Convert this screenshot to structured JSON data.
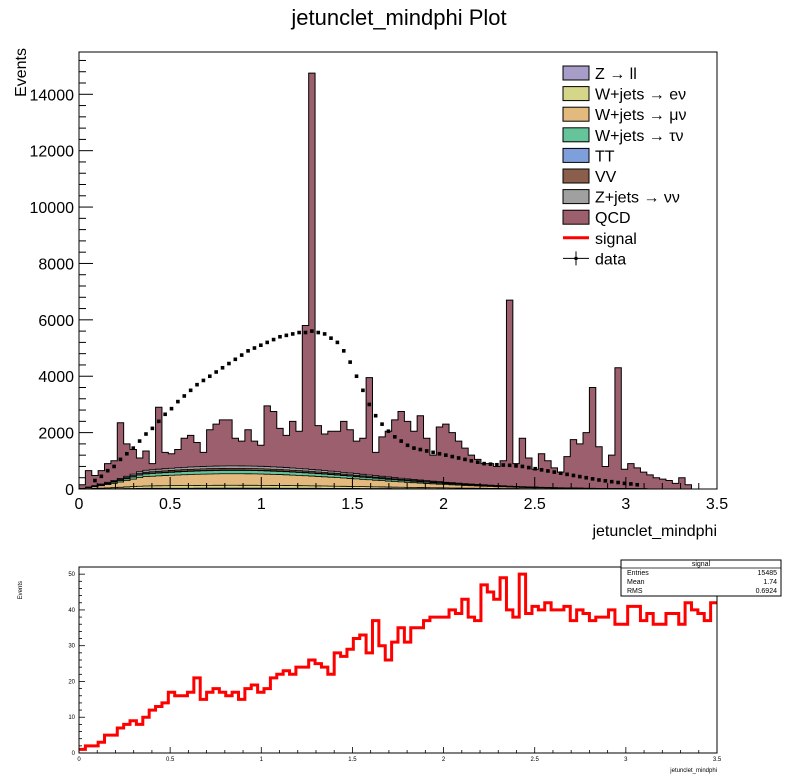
{
  "chart_data": [
    {
      "type": "area",
      "title": "jetunclet_mindphi Plot",
      "xlabel": "jetunclet_mindphi",
      "ylabel": "Events",
      "xlim": [
        0,
        3.5
      ],
      "ylim": [
        0,
        15500
      ],
      "x_ticks": [
        0,
        0.5,
        1,
        1.5,
        2,
        2.5,
        3,
        3.5
      ],
      "x_tick_labels": [
        "0",
        "0.5",
        "1",
        "1.5",
        "2",
        "2.5",
        "3",
        "3.5"
      ],
      "y_ticks": [
        0,
        2000,
        4000,
        6000,
        8000,
        10000,
        12000,
        14000
      ],
      "y_tick_labels": [
        "0",
        "2000",
        "4000",
        "6000",
        "8000",
        "10000",
        "12000",
        "14000"
      ],
      "bin_width": 0.035,
      "legend_position": "top-right",
      "colors": {
        "z_ll": "#a89cc8",
        "w_enu": "#d6d68a",
        "w_munu": "#e3b97d",
        "w_taunu": "#66c49a",
        "tt": "#7f9fdc",
        "vv": "#8b5e4c",
        "z_nunu": "#a0a0a0",
        "qcd": "#9c5f6e",
        "signal": "#ff0000",
        "data": "#000000"
      },
      "legend": [
        {
          "key": "z_ll",
          "label": "Z → ll",
          "kind": "fill"
        },
        {
          "key": "w_enu",
          "label": "W+jets → eν",
          "kind": "fill"
        },
        {
          "key": "w_munu",
          "label": "W+jets → μν",
          "kind": "fill"
        },
        {
          "key": "w_taunu",
          "label": "W+jets → τν",
          "kind": "fill"
        },
        {
          "key": "tt",
          "label": "TT",
          "kind": "fill"
        },
        {
          "key": "vv",
          "label": "VV",
          "kind": "fill"
        },
        {
          "key": "z_nunu",
          "label": "Z+jets → νν",
          "kind": "fill"
        },
        {
          "key": "qcd",
          "label": "QCD",
          "kind": "fill"
        },
        {
          "key": "signal",
          "label": "signal",
          "kind": "line"
        },
        {
          "key": "data",
          "label": "data",
          "kind": "marker"
        }
      ],
      "stack_total": [
        150,
        650,
        480,
        650,
        900,
        1000,
        2350,
        1600,
        1400,
        1100,
        1350,
        900,
        2900,
        1300,
        1250,
        1400,
        1800,
        1900,
        1650,
        1300,
        2100,
        2300,
        2450,
        2450,
        1800,
        1700,
        2100,
        1700,
        1550,
        2950,
        2750,
        2150,
        1900,
        2400,
        2050,
        5800,
        14750,
        2250,
        1950,
        2050,
        2050,
        2400,
        2100,
        1700,
        1800,
        3950,
        1300,
        1850,
        2050,
        2450,
        2750,
        2400,
        2050,
        2600,
        1800,
        1200,
        2200,
        2300,
        2000,
        1700,
        1450,
        1200,
        1050,
        900,
        900,
        800,
        1000,
        6700,
        900,
        1800,
        1100,
        700,
        1250,
        1000,
        750,
        600,
        1150,
        1750,
        1600,
        2000,
        3600,
        1500,
        800,
        1200,
        4300,
        700,
        900,
        750,
        600,
        500,
        400,
        350,
        300,
        200,
        400,
        150,
        0,
        0,
        0,
        0
      ],
      "stack_layers": [
        {
          "key": "z_ll",
          "scale": 0.02
        },
        {
          "key": "w_enu",
          "scale": 0.07
        },
        {
          "key": "w_munu",
          "scale": 0.28
        },
        {
          "key": "w_taunu",
          "scale": 0.08
        },
        {
          "key": "tt",
          "scale": 0.01
        },
        {
          "key": "vv",
          "scale": 0.04
        },
        {
          "key": "z_nunu",
          "scale": 0.06
        }
      ],
      "data_points": {
        "x": [
          0.0875,
          0.1225,
          0.1575,
          0.1925,
          0.2275,
          0.2625,
          0.2975,
          0.3325,
          0.3675,
          0.4025,
          0.4375,
          0.4725,
          0.5075,
          0.5425,
          0.5775,
          0.6125,
          0.6475,
          0.6825,
          0.7175,
          0.7525,
          0.7875,
          0.8225,
          0.8575,
          0.8925,
          0.9275,
          0.9625,
          0.9975,
          1.0325,
          1.0675,
          1.1025,
          1.1375,
          1.1725,
          1.2075,
          1.2425,
          1.2775,
          1.3125,
          1.3475,
          1.3825,
          1.4175,
          1.4525,
          1.4875,
          1.5225,
          1.5575,
          1.5925,
          1.6275,
          1.6625,
          1.6975,
          1.7325,
          1.7675,
          1.8025,
          1.8375,
          1.8725,
          1.9075,
          1.9425,
          1.9775,
          2.0125,
          2.0475,
          2.0825,
          2.1175,
          2.1525,
          2.1875,
          2.2225,
          2.2575,
          2.2925,
          2.3275,
          2.3625,
          2.3975,
          2.4325,
          2.4675,
          2.5025,
          2.5375,
          2.5725,
          2.6075,
          2.6425,
          2.6775,
          2.7125,
          2.7475,
          2.7825,
          2.8175,
          2.8525,
          2.8875,
          2.9225,
          2.9575,
          2.9925,
          3.0275,
          3.0625
        ],
        "y": [
          300,
          450,
          650,
          800,
          1050,
          1250,
          1450,
          1700,
          1950,
          2150,
          2400,
          2650,
          2850,
          3100,
          3300,
          3500,
          3700,
          3850,
          4000,
          4150,
          4300,
          4450,
          4600,
          4750,
          4900,
          5000,
          5100,
          5200,
          5300,
          5400,
          5450,
          5500,
          5550,
          5550,
          5600,
          5550,
          5500,
          5350,
          5200,
          4900,
          4500,
          4000,
          3500,
          3000,
          2600,
          2300,
          2050,
          1850,
          1700,
          1550,
          1450,
          1400,
          1350,
          1300,
          1250,
          1200,
          1150,
          1100,
          1050,
          1000,
          950,
          900,
          880,
          860,
          850,
          840,
          820,
          800,
          760,
          720,
          680,
          640,
          600,
          560,
          520,
          480,
          440,
          400,
          360,
          320,
          290,
          260,
          230,
          200,
          180,
          150
        ]
      }
    },
    {
      "type": "line",
      "title": "",
      "xlabel": "jetunclet_mindphi",
      "ylabel": "Events",
      "xlim": [
        0,
        3.5
      ],
      "ylim": [
        0,
        52
      ],
      "x_ticks": [
        0,
        0.5,
        1,
        1.5,
        2,
        2.5,
        3,
        3.5
      ],
      "x_tick_labels": [
        "0",
        "0.5",
        "1",
        "1.5",
        "2",
        "2.5",
        "3",
        "3.5"
      ],
      "y_ticks": [
        0,
        10,
        20,
        30,
        40,
        50
      ],
      "y_tick_labels": [
        "0",
        "10",
        "20",
        "30",
        "40",
        "50"
      ],
      "bin_width": 0.035,
      "series": [
        {
          "name": "signal",
          "values": [
            1,
            2,
            2,
            3,
            5,
            5,
            7,
            8,
            9,
            8,
            10,
            12,
            13,
            14,
            17,
            16,
            16,
            17,
            21,
            15,
            17,
            18,
            17,
            16,
            17,
            15,
            18,
            19,
            17,
            18,
            21,
            22,
            23,
            22,
            24,
            24,
            26,
            25,
            24,
            22,
            28,
            27,
            29,
            32,
            33,
            28,
            37,
            30,
            26,
            31,
            35,
            31,
            35,
            35,
            37,
            38,
            38,
            38,
            40,
            39,
            43,
            38,
            37,
            47,
            45,
            43,
            49,
            40,
            38,
            50,
            39,
            41,
            40,
            42,
            40,
            40,
            41,
            37,
            40,
            39,
            37,
            38,
            38,
            40,
            36,
            36,
            41,
            41,
            37,
            39,
            36,
            36,
            39,
            39,
            36,
            42,
            40,
            39,
            37,
            42,
            43,
            46,
            35,
            36,
            37,
            37,
            38,
            44,
            36,
            34,
            44,
            36,
            29,
            28,
            32,
            27,
            20,
            28,
            26,
            20,
            16,
            11,
            12,
            25,
            20,
            10,
            6,
            4,
            3,
            3,
            2,
            1,
            0
          ]
        }
      ],
      "stats_box": {
        "title": "signal",
        "rows": [
          {
            "label": "Entries",
            "value": "15485"
          },
          {
            "label": "Mean",
            "value": "1.74"
          },
          {
            "label": "RMS",
            "value": "0.6924"
          }
        ]
      }
    }
  ]
}
